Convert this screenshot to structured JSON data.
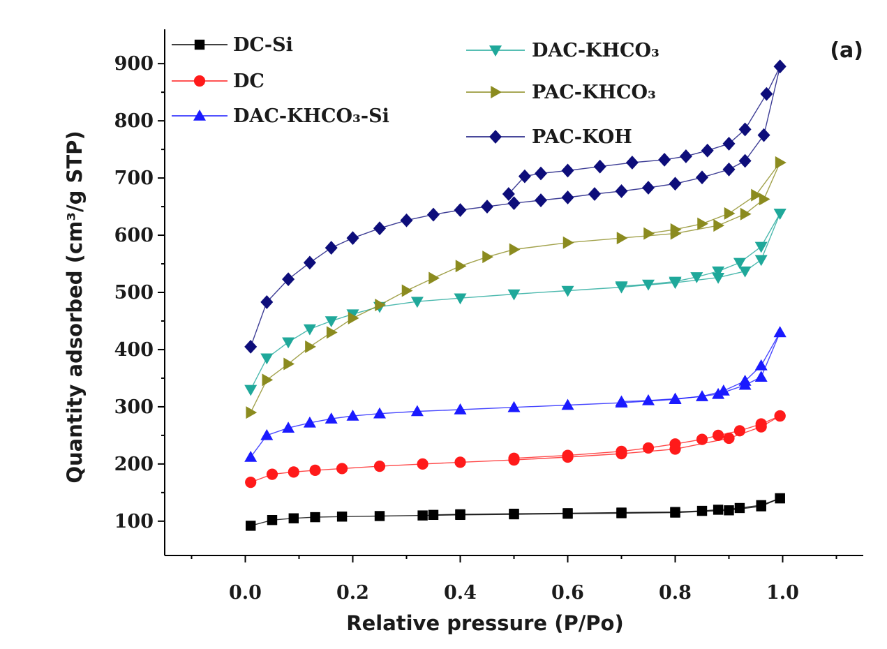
{
  "chart_data": {
    "type": "line",
    "panel_label": "(a)",
    "xlabel": "Relative pressure (P/Po)",
    "ylabel": "Quantity adsorbed (cm³/g STP)",
    "xlim": [
      -0.15,
      1.15
    ],
    "ylim": [
      40,
      960
    ],
    "xticks": [
      0.0,
      0.2,
      0.4,
      0.6,
      0.8,
      1.0
    ],
    "xtick_labels": [
      "0.0",
      "0.2",
      "0.4",
      "0.6",
      "0.8",
      "1.0"
    ],
    "yticks": [
      100,
      200,
      300,
      400,
      500,
      600,
      700,
      800,
      900
    ],
    "ytick_labels": [
      "100",
      "200",
      "300",
      "400",
      "500",
      "600",
      "700",
      "800",
      "900"
    ],
    "grid": false,
    "legend_placement": "top",
    "series": [
      {
        "name": "DC-Si",
        "color": "#000000",
        "marker": "square",
        "adsorption": {
          "x": [
            0.01,
            0.05,
            0.09,
            0.13,
            0.18,
            0.25,
            0.33,
            0.4,
            0.5,
            0.6,
            0.7,
            0.8,
            0.9,
            0.96,
            0.995
          ],
          "y": [
            92,
            102,
            105,
            107,
            108,
            109,
            110,
            111,
            112,
            113,
            114,
            115,
            119,
            126,
            140
          ]
        },
        "desorption": {
          "x": [
            0.995,
            0.96,
            0.92,
            0.88,
            0.85,
            0.8,
            0.7,
            0.6,
            0.5,
            0.4,
            0.35
          ],
          "y": [
            140,
            128,
            123,
            120,
            118,
            116,
            115,
            114,
            113,
            112,
            111
          ]
        }
      },
      {
        "name": "DC",
        "color": "#ff1a1a",
        "marker": "circle",
        "adsorption": {
          "x": [
            0.01,
            0.05,
            0.09,
            0.13,
            0.18,
            0.25,
            0.33,
            0.4,
            0.5,
            0.6,
            0.7,
            0.8,
            0.9,
            0.96,
            0.995
          ],
          "y": [
            168,
            182,
            186,
            189,
            192,
            196,
            200,
            203,
            207,
            212,
            218,
            226,
            245,
            265,
            284
          ]
        },
        "desorption": {
          "x": [
            0.995,
            0.96,
            0.92,
            0.88,
            0.85,
            0.8,
            0.75,
            0.7,
            0.6,
            0.5
          ],
          "y": [
            284,
            270,
            258,
            250,
            243,
            235,
            228,
            222,
            215,
            210
          ]
        }
      },
      {
        "name": "DAC-KHCO₃-Si",
        "color": "#1a1aff",
        "marker": "triangle-up",
        "adsorption": {
          "x": [
            0.01,
            0.04,
            0.08,
            0.12,
            0.16,
            0.2,
            0.25,
            0.32,
            0.4,
            0.5,
            0.6,
            0.7,
            0.8,
            0.88,
            0.93,
            0.96,
            0.995
          ],
          "y": [
            212,
            250,
            263,
            272,
            279,
            284,
            288,
            292,
            295,
            299,
            303,
            307,
            313,
            322,
            338,
            352,
            430
          ]
        },
        "desorption": {
          "x": [
            0.995,
            0.96,
            0.93,
            0.89,
            0.85,
            0.8,
            0.75,
            0.7
          ],
          "y": [
            430,
            372,
            345,
            328,
            318,
            314,
            311,
            309
          ]
        }
      },
      {
        "name": "DAC-KHCO₃",
        "color": "#1fa89a",
        "marker": "triangle-down",
        "adsorption": {
          "x": [
            0.01,
            0.04,
            0.08,
            0.12,
            0.16,
            0.2,
            0.25,
            0.32,
            0.4,
            0.5,
            0.6,
            0.7,
            0.8,
            0.88,
            0.93,
            0.96,
            0.995
          ],
          "y": [
            330,
            385,
            413,
            436,
            450,
            462,
            475,
            484,
            490,
            497,
            503,
            509,
            517,
            526,
            537,
            557,
            638
          ]
        },
        "desorption": {
          "x": [
            0.995,
            0.96,
            0.92,
            0.88,
            0.84,
            0.8,
            0.75,
            0.7
          ],
          "y": [
            638,
            580,
            552,
            537,
            527,
            519,
            514,
            511
          ]
        }
      },
      {
        "name": "PAC-KHCO₃",
        "color": "#8b8b1f",
        "marker": "triangle-right",
        "adsorption": {
          "x": [
            0.01,
            0.04,
            0.08,
            0.12,
            0.16,
            0.2,
            0.25,
            0.3,
            0.35,
            0.4,
            0.45,
            0.5,
            0.6,
            0.7,
            0.8,
            0.88,
            0.93,
            0.965,
            0.995
          ],
          "y": [
            290,
            347,
            375,
            405,
            430,
            455,
            478,
            503,
            525,
            546,
            562,
            575,
            587,
            595,
            603,
            617,
            637,
            663,
            727
          ]
        },
        "desorption": {
          "x": [
            0.995,
            0.95,
            0.9,
            0.85,
            0.8,
            0.75
          ],
          "y": [
            727,
            670,
            638,
            620,
            610,
            603
          ]
        }
      },
      {
        "name": "PAC-KOH",
        "color": "#0d0d7a",
        "marker": "diamond",
        "adsorption": {
          "x": [
            0.01,
            0.04,
            0.08,
            0.12,
            0.16,
            0.2,
            0.25,
            0.3,
            0.35,
            0.4,
            0.45,
            0.5,
            0.55,
            0.6,
            0.65,
            0.7,
            0.75,
            0.8,
            0.85,
            0.9,
            0.93,
            0.965,
            0.995
          ],
          "y": [
            405,
            483,
            523,
            552,
            578,
            595,
            612,
            626,
            636,
            644,
            650,
            656,
            661,
            666,
            672,
            677,
            683,
            690,
            701,
            715,
            730,
            775,
            895
          ]
        },
        "desorption": {
          "x": [
            0.995,
            0.97,
            0.93,
            0.9,
            0.86,
            0.82,
            0.78,
            0.72,
            0.66,
            0.6,
            0.55,
            0.52,
            0.49
          ],
          "y": [
            895,
            847,
            785,
            760,
            748,
            738,
            732,
            727,
            720,
            713,
            708,
            703,
            672
          ]
        }
      }
    ]
  }
}
